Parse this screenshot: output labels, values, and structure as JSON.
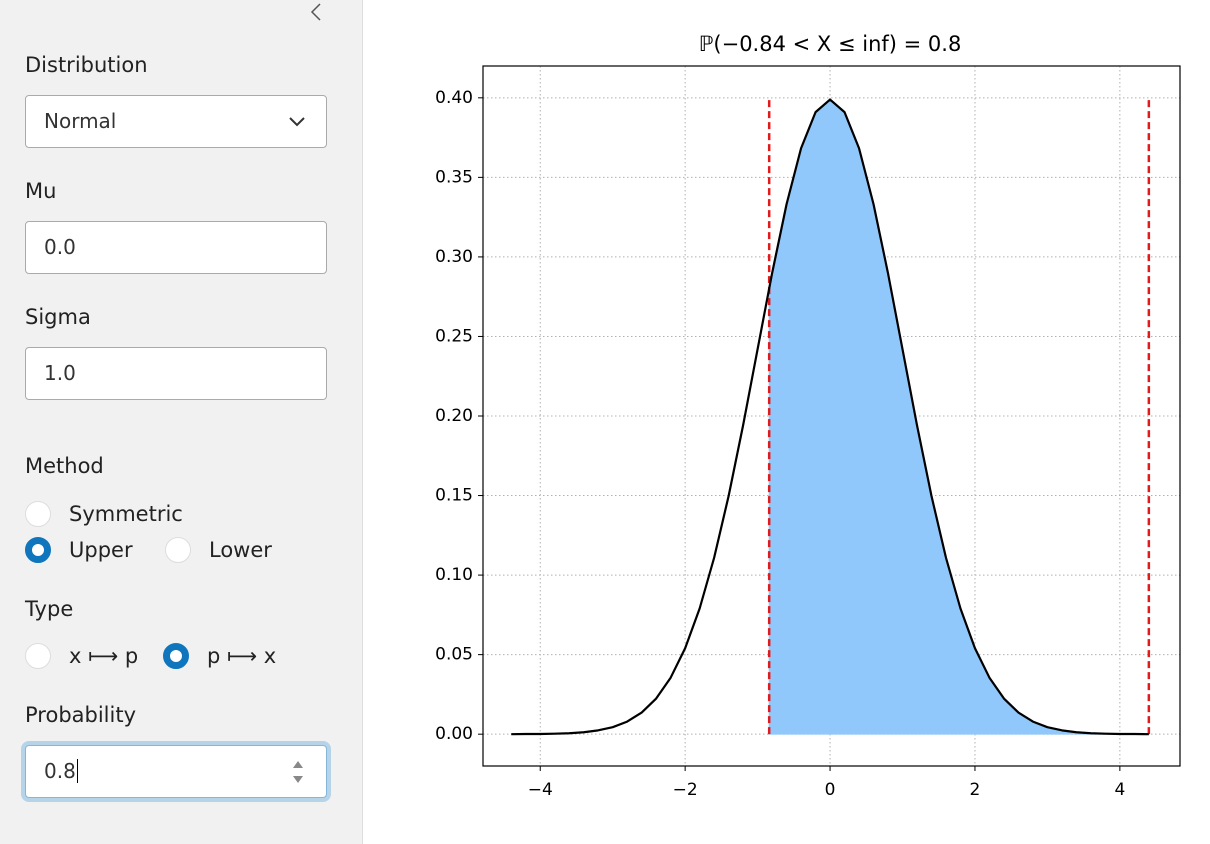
{
  "sidebar": {
    "distribution": {
      "label": "Distribution",
      "value": "Normal"
    },
    "mu": {
      "label": "Mu",
      "value": "0.0"
    },
    "sigma": {
      "label": "Sigma",
      "value": "1.0"
    },
    "method": {
      "label": "Method",
      "options": [
        "Symmetric",
        "Upper",
        "Lower"
      ],
      "selected": "Upper"
    },
    "type": {
      "label": "Type",
      "options": [
        "x ⟼ p",
        "p ⟼ x"
      ],
      "selected": "p ⟼ x"
    },
    "probability": {
      "label": "Probability",
      "value": "0.8"
    }
  },
  "chart_data": {
    "type": "line",
    "title": "ℙ(−0.84 < X ≤ inf) = 0.8",
    "x": [
      -4.4,
      -4.2,
      -4.0,
      -3.8,
      -3.6,
      -3.4,
      -3.2,
      -3.0,
      -2.8,
      -2.6,
      -2.4,
      -2.2,
      -2.0,
      -1.8,
      -1.6,
      -1.4,
      -1.2,
      -1.0,
      -0.8,
      -0.6,
      -0.4,
      -0.2,
      0,
      0.2,
      0.4,
      0.6,
      0.8,
      1.0,
      1.2,
      1.4,
      1.6,
      1.8,
      2.0,
      2.2,
      2.4,
      2.6,
      2.8,
      3.0,
      3.2,
      3.4,
      3.6,
      3.8,
      4.0,
      4.2,
      4.4
    ],
    "values": [
      0,
      0.0001,
      0.0001,
      0.0003,
      0.0006,
      0.0012,
      0.0024,
      0.0044,
      0.0079,
      0.0136,
      0.0224,
      0.0355,
      0.054,
      0.079,
      0.1109,
      0.1497,
      0.1942,
      0.242,
      0.2897,
      0.3332,
      0.3683,
      0.391,
      0.3989,
      0.391,
      0.3683,
      0.3332,
      0.2897,
      0.242,
      0.1942,
      0.1497,
      0.1109,
      0.079,
      0.054,
      0.0355,
      0.0224,
      0.0136,
      0.0079,
      0.0044,
      0.0024,
      0.0012,
      0.0006,
      0.0003,
      0.0001,
      0.0001,
      0
    ],
    "color": "#000000",
    "fill": {
      "x": [
        -0.84,
        -0.8,
        -0.6,
        -0.4,
        -0.2,
        0,
        0.2,
        0.4,
        0.6,
        0.8,
        1.0,
        1.2,
        1.4,
        1.6,
        1.8,
        2.0,
        2.2,
        2.4,
        2.6,
        2.8,
        3.0,
        3.2,
        3.4,
        3.6,
        3.8,
        4.0,
        4.2,
        4.4
      ],
      "values": [
        0.2803,
        0.2897,
        0.3332,
        0.3683,
        0.391,
        0.3989,
        0.391,
        0.3683,
        0.3332,
        0.2897,
        0.242,
        0.1942,
        0.1497,
        0.1109,
        0.079,
        0.054,
        0.0355,
        0.0224,
        0.0136,
        0.0079,
        0.0044,
        0.0024,
        0.0012,
        0.0006,
        0.0003,
        0.0001,
        0.0001,
        0
      ],
      "color": "#90c8fc"
    },
    "vlines": {
      "x": [
        -0.84,
        4.4
      ],
      "ymin": 0,
      "ymax": 0.4,
      "color": "#e31a1c"
    },
    "xlim": [
      -4.79,
      4.83
    ],
    "ylim": [
      -0.02,
      0.42
    ],
    "xticks": [
      {
        "value": -4,
        "label": "−4"
      },
      {
        "value": -2,
        "label": "−2"
      },
      0,
      2,
      4
    ],
    "yticks": [
      {
        "value": 0,
        "label": "0.00"
      },
      {
        "value": 0.05,
        "label": "0.05"
      },
      {
        "value": 0.1,
        "label": "0.10"
      },
      {
        "value": 0.15,
        "label": "0.15"
      },
      {
        "value": 0.2,
        "label": "0.20"
      },
      {
        "value": 0.25,
        "label": "0.25"
      },
      {
        "value": 0.3,
        "label": "0.30"
      },
      {
        "value": 0.35,
        "label": "0.35"
      },
      {
        "value": 0.4,
        "label": "0.40"
      }
    ],
    "grid": true
  }
}
